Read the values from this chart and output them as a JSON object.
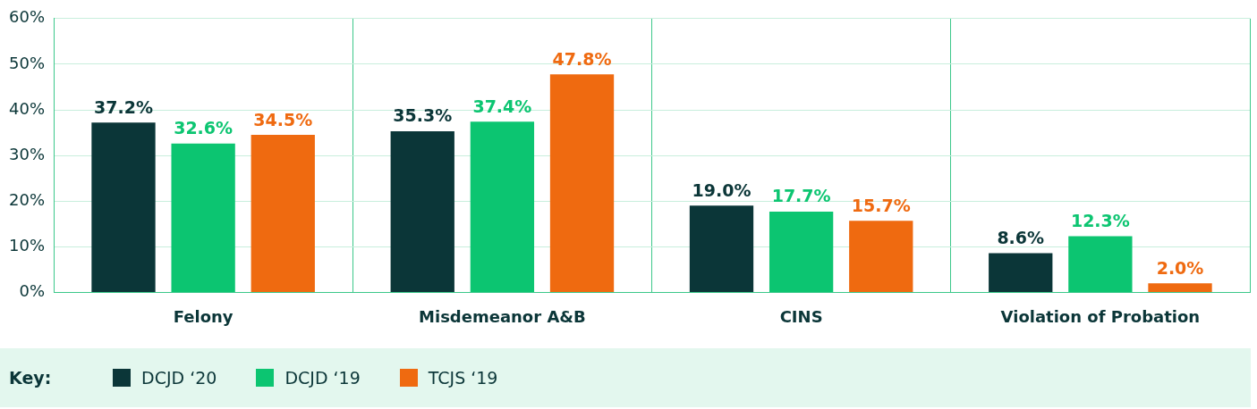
{
  "chart_data": {
    "type": "bar",
    "categories": [
      "Felony",
      "Misdemeanor A&B",
      "CINS",
      "Violation of Probation"
    ],
    "series": [
      {
        "name": "DCJD ‘20",
        "color": "#0b3638",
        "values": [
          37.2,
          35.3,
          19.0,
          8.6
        ],
        "value_labels": [
          "37.2%",
          "35.3%",
          "19.0%",
          "8.6%"
        ]
      },
      {
        "name": "DCJD ‘19",
        "color": "#0cc571",
        "values": [
          32.6,
          37.4,
          17.7,
          12.3
        ],
        "value_labels": [
          "32.6%",
          "37.4%",
          "17.7%",
          "12.3%"
        ]
      },
      {
        "name": "TCJS ‘19",
        "color": "#ef6a10",
        "values": [
          34.5,
          47.8,
          15.7,
          2.0
        ],
        "value_labels": [
          "34.5%",
          "47.8%",
          "15.7%",
          "2.0%"
        ]
      }
    ],
    "ylim": [
      0,
      60
    ],
    "yticks": [
      {
        "value": 0,
        "label": "0%"
      },
      {
        "value": 10,
        "label": "10%"
      },
      {
        "value": 20,
        "label": "20%"
      },
      {
        "value": 30,
        "label": "30%"
      },
      {
        "value": 40,
        "label": "40%"
      },
      {
        "value": 50,
        "label": "50%"
      },
      {
        "value": 60,
        "label": "60%"
      }
    ],
    "grid": true,
    "legend": "bottom",
    "legend_title": "Key:"
  }
}
